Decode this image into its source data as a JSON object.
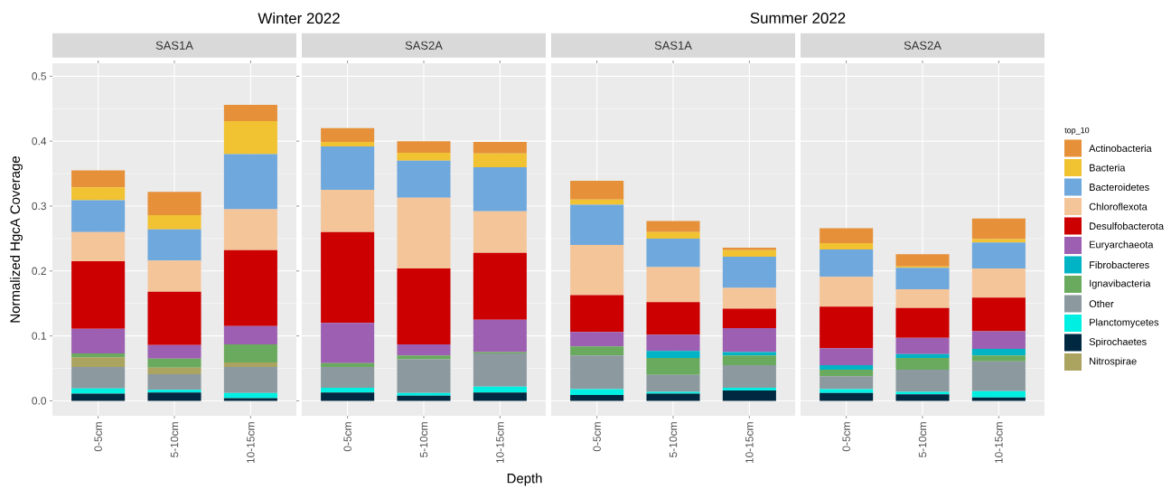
{
  "chart_data": [
    {
      "type": "bar",
      "title": "SAS1A",
      "ylabel": "Normalized HgcA Coverage",
      "annotations": [
        "Winter 2022"
      ],
      "stacked": true,
      "grid": true,
      "tick_labels": true,
      "categories": [
        "0-5cm",
        "5-10cm",
        "10-15cm"
      ],
      "ylim": [
        -0.023,
        0.52
      ],
      "yticks": [
        {
          "value": 0,
          "label": "0.0"
        },
        0.1,
        0.2,
        0.3,
        0.4,
        0.5
      ],
      "series": [
        {
          "color": "#002840",
          "values": [
            0.011,
            0.013,
            0.004
          ]
        },
        {
          "color": "#00efe3",
          "values": [
            0.008,
            0.004,
            0.008
          ]
        },
        {
          "color": "#8c9aa0",
          "values": [
            0.033,
            0.024,
            0.04
          ]
        },
        {
          "color": "#aaa460",
          "values": [
            0.015,
            0.01,
            0.007
          ]
        },
        {
          "color": "#6aaa5e",
          "values": [
            0.006,
            0.014,
            0.028
          ]
        },
        {
          "color": "#9c5fb1",
          "values": [
            0.038,
            0.021,
            0.028
          ]
        },
        {
          "color": "#cc0000",
          "values": [
            0.104,
            0.082,
            0.117
          ]
        },
        {
          "color": "#f5c59a",
          "values": [
            0.045,
            0.048,
            0.063
          ]
        },
        {
          "color": "#6fa8dc",
          "values": [
            0.049,
            0.048,
            0.085
          ]
        },
        {
          "color": "#f1c232",
          "values": [
            0.02,
            0.022,
            0.051
          ]
        },
        {
          "color": "#e6913a",
          "values": [
            0.026,
            0.036,
            0.025
          ]
        }
      ]
    },
    {
      "type": "bar",
      "title": "SAS2A",
      "xlabel": "Depth",
      "stacked": true,
      "grid": true,
      "tick_labels": "x",
      "categories": [
        "0-5cm",
        "5-10cm",
        "10-15cm"
      ],
      "ylim": [
        -0.023,
        0.52
      ],
      "yticks": [
        0,
        0.1,
        0.2,
        0.3,
        0.4,
        0.5
      ],
      "series": [
        {
          "color": "#002840",
          "values": [
            0.013,
            0.008,
            0.013
          ]
        },
        {
          "color": "#00efe3",
          "values": [
            0.007,
            0.004,
            0.009
          ]
        },
        {
          "color": "#8c9aa0",
          "values": [
            0.032,
            0.052,
            0.051
          ]
        },
        {
          "color": "#6aaa5e",
          "values": [
            0.006,
            0.006,
            0.002
          ]
        },
        {
          "color": "#9c5fb1",
          "values": [
            0.062,
            0.017,
            0.05
          ]
        },
        {
          "color": "#cc0000",
          "values": [
            0.14,
            0.117,
            0.103
          ]
        },
        {
          "color": "#f5c59a",
          "values": [
            0.065,
            0.109,
            0.064
          ]
        },
        {
          "color": "#6fa8dc",
          "values": [
            0.067,
            0.057,
            0.068
          ]
        },
        {
          "color": "#f1c232",
          "values": [
            0.007,
            0.012,
            0.021
          ]
        },
        {
          "color": "#e6913a",
          "values": [
            0.021,
            0.018,
            0.018
          ]
        }
      ]
    },
    {
      "type": "bar",
      "title": "SAS1A",
      "annotations": [
        "Summer 2022"
      ],
      "stacked": true,
      "grid": true,
      "tick_labels": "x",
      "categories": [
        "0-5cm",
        "5-10cm",
        "10-15cm"
      ],
      "ylim": [
        -0.023,
        0.52
      ],
      "yticks": [
        0,
        0.1,
        0.2,
        0.3,
        0.4,
        0.5
      ],
      "series": [
        {
          "color": "#002840",
          "values": [
            0.009,
            0.011,
            0.016
          ]
        },
        {
          "color": "#00efe3",
          "values": [
            0.009,
            0.003,
            0.004
          ]
        },
        {
          "color": "#8c9aa0",
          "values": [
            0.052,
            0.026,
            0.035
          ]
        },
        {
          "color": "#6aaa5e",
          "values": [
            0.014,
            0.026,
            0.015
          ]
        },
        {
          "color": "#00b4c5",
          "values": [
            0,
            0.011,
            0.005
          ]
        },
        {
          "color": "#9c5fb1",
          "values": [
            0.022,
            0.025,
            0.037
          ]
        },
        {
          "color": "#cc0000",
          "values": [
            0.057,
            0.05,
            0.03
          ]
        },
        {
          "color": "#f5c59a",
          "values": [
            0.077,
            0.054,
            0.032
          ]
        },
        {
          "color": "#6fa8dc",
          "values": [
            0.062,
            0.044,
            0.048
          ]
        },
        {
          "color": "#f1c232",
          "values": [
            0.008,
            0.01,
            0.01
          ]
        },
        {
          "color": "#e6913a",
          "values": [
            0.029,
            0.017,
            0.004
          ]
        }
      ]
    },
    {
      "type": "bar",
      "title": "SAS2A",
      "legend_title": "top_10",
      "legend": "right",
      "stacked": true,
      "grid": true,
      "tick_labels": "x",
      "categories": [
        "0-5cm",
        "5-10cm",
        "10-15cm"
      ],
      "ylim": [
        -0.023,
        0.52
      ],
      "yticks": [
        0,
        0.1,
        0.2,
        0.3,
        0.4,
        0.5
      ],
      "series": [
        {
          "name": "Nitrospirae",
          "color": "#aaa460",
          "values": [
            0,
            0,
            0
          ]
        },
        {
          "name": "Spirochaetes",
          "color": "#002840",
          "values": [
            0.012,
            0.01,
            0.005
          ]
        },
        {
          "name": "Planctomycetes",
          "color": "#00efe3",
          "values": [
            0.006,
            0.004,
            0.01
          ]
        },
        {
          "name": "Other",
          "color": "#8c9aa0",
          "values": [
            0.02,
            0.034,
            0.046
          ]
        },
        {
          "name": "Ignavibacteria",
          "color": "#6aaa5e",
          "values": [
            0.01,
            0.018,
            0.009
          ]
        },
        {
          "name": "Fibrobacteres",
          "color": "#00b4c5",
          "values": [
            0.007,
            0.006,
            0.01
          ]
        },
        {
          "name": "Euryarchaeota",
          "color": "#9c5fb1",
          "values": [
            0.026,
            0.025,
            0.027
          ]
        },
        {
          "name": "Desulfobacterota",
          "color": "#cc0000",
          "values": [
            0.064,
            0.046,
            0.052
          ]
        },
        {
          "name": "Chloroflexota",
          "color": "#f5c59a",
          "values": [
            0.046,
            0.029,
            0.045
          ]
        },
        {
          "name": "Bacteroidetes",
          "color": "#6fa8dc",
          "values": [
            0.042,
            0.033,
            0.04
          ]
        },
        {
          "name": "Bacteria",
          "color": "#f1c232",
          "values": [
            0.01,
            0.002,
            0.005
          ]
        },
        {
          "name": "Actinobacteria",
          "color": "#e6913a",
          "values": [
            0.023,
            0.019,
            0.032
          ]
        }
      ]
    }
  ]
}
